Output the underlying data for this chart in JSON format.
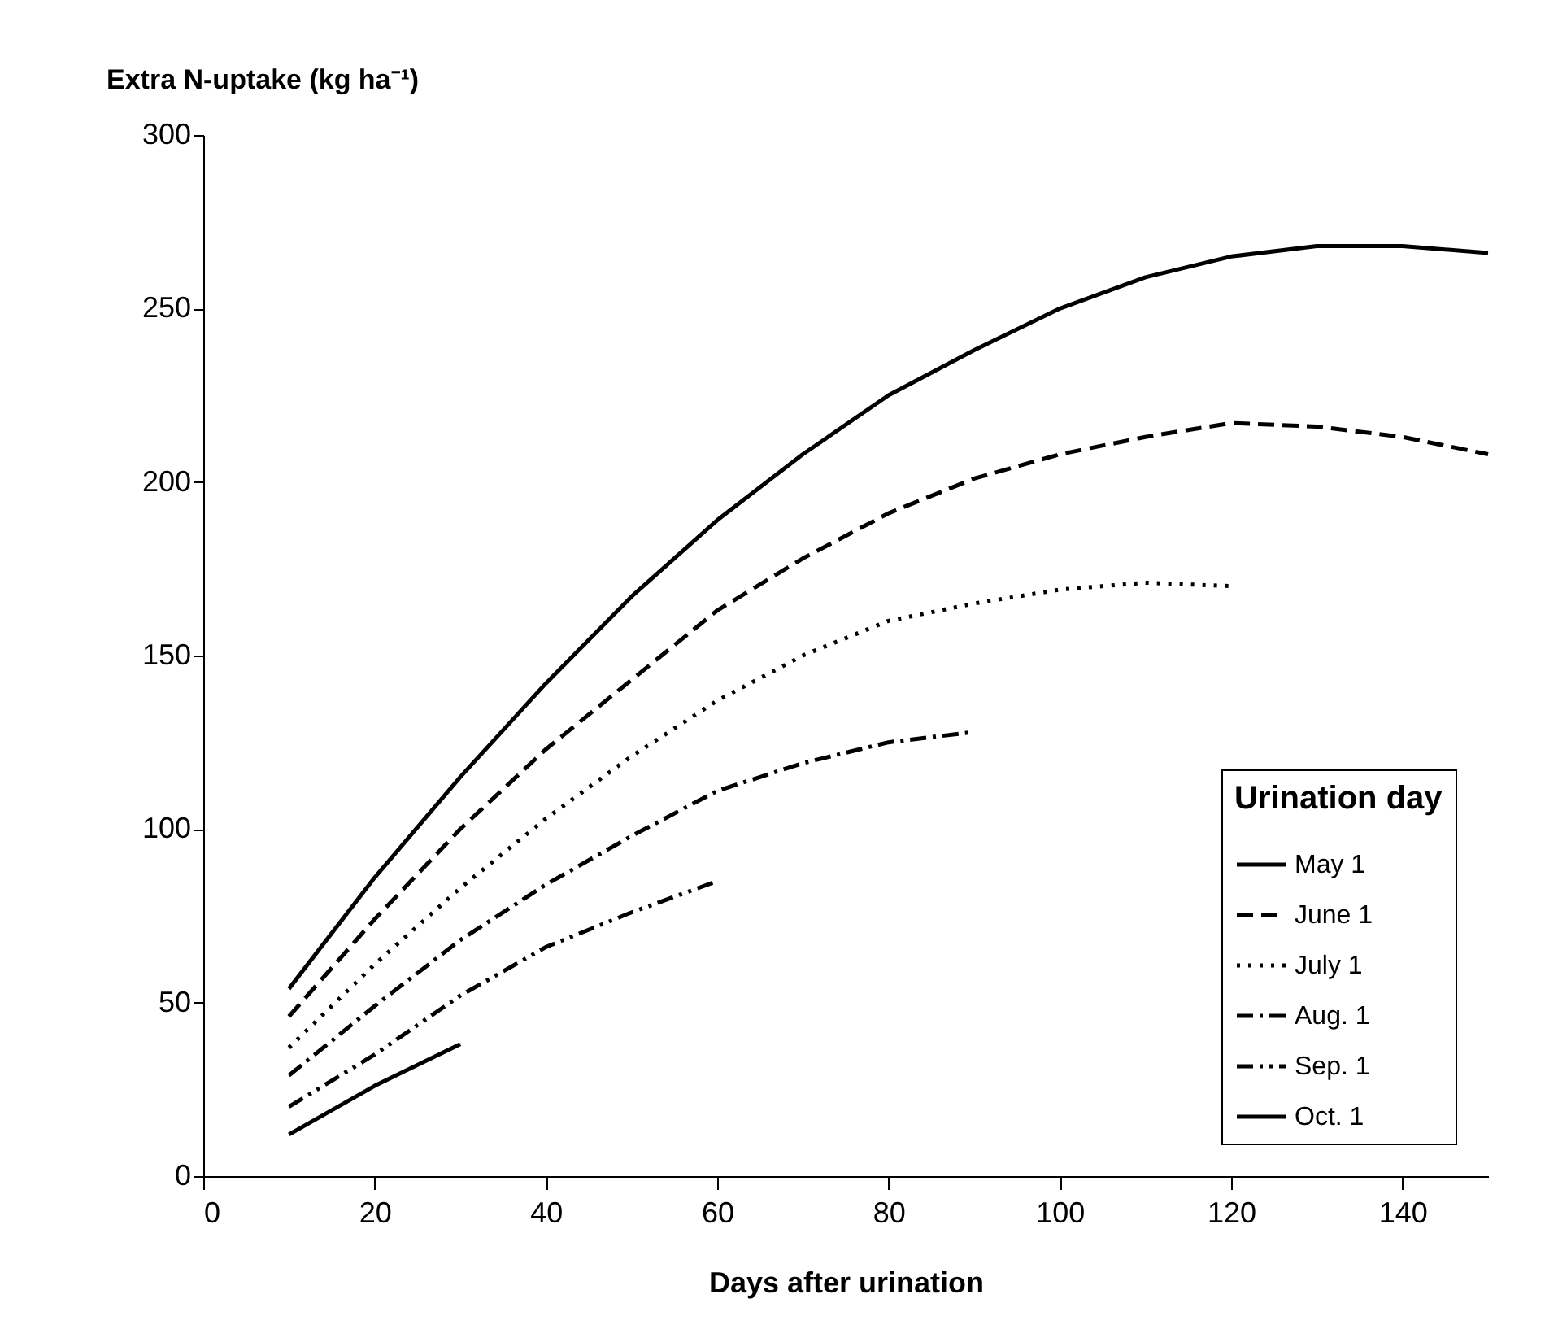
{
  "chart_data": {
    "type": "line",
    "xlabel": "Days after urination",
    "ylabel": "Extra N-uptake (kg ha⁻¹)",
    "legend_title": "Urination day",
    "xlim": [
      0,
      150
    ],
    "xticks": [
      0,
      20,
      40,
      60,
      80,
      100,
      120,
      140
    ],
    "ylim": [
      0,
      300
    ],
    "yticks": [
      0,
      50,
      100,
      150,
      200,
      250,
      300
    ],
    "grid": false,
    "legend": "bottom right",
    "marker": "none",
    "series": [
      {
        "name": "May 1",
        "color": "#000000",
        "line_style": "solid",
        "x": [
          10,
          20,
          30,
          40,
          50,
          60,
          70,
          80,
          90,
          100,
          110,
          120,
          130,
          140,
          150
        ],
        "values": [
          54,
          86,
          115,
          142,
          167,
          189,
          208,
          225,
          238,
          250,
          259,
          265,
          268,
          268,
          266
        ]
      },
      {
        "name": "June 1",
        "color": "#000000",
        "line_style": "dashed",
        "x": [
          10,
          20,
          30,
          40,
          50,
          60,
          70,
          80,
          90,
          100,
          110,
          120,
          130,
          140,
          150
        ],
        "values": [
          46,
          74,
          100,
          123,
          143,
          163,
          178,
          191,
          201,
          208,
          213,
          217,
          216,
          213,
          208
        ]
      },
      {
        "name": "July 1",
        "color": "#000000",
        "line_style": "dotted",
        "x": [
          10,
          20,
          30,
          40,
          50,
          60,
          70,
          80,
          90,
          100,
          110,
          120
        ],
        "values": [
          37,
          61,
          83,
          103,
          121,
          137,
          150,
          160,
          165,
          169,
          171,
          170
        ]
      },
      {
        "name": "Aug. 1",
        "color": "#000000",
        "line_style": "dashdot",
        "x": [
          10,
          20,
          30,
          40,
          50,
          60,
          70,
          80,
          90
        ],
        "values": [
          29,
          49,
          68,
          84,
          98,
          111,
          119,
          125,
          128
        ]
      },
      {
        "name": "Sep. 1",
        "color": "#000000",
        "line_style": "dashdotdot",
        "x": [
          10,
          20,
          30,
          40,
          50,
          60
        ],
        "values": [
          20,
          35,
          52,
          66,
          76,
          85
        ]
      },
      {
        "name": "Oct. 1",
        "color": "#000000",
        "line_style": "solid",
        "x": [
          10,
          20,
          30
        ],
        "values": [
          12,
          26,
          38
        ]
      }
    ]
  }
}
